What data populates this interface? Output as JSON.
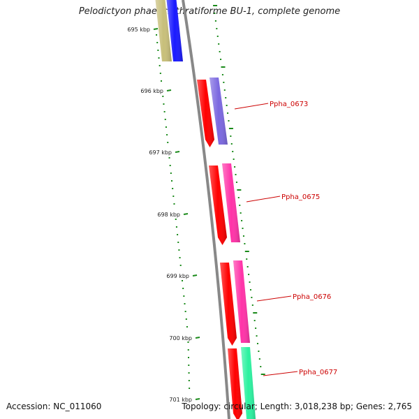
{
  "title": "Pelodictyon phaeoclathratiforme BU-1, complete genome",
  "accession": "Accession: NC_011060",
  "summary": "Topology: circular; Length: 3,018,238 bp; Genes: 2,765",
  "colors": {
    "backbone": "#888888",
    "tick": "#1a8a1a",
    "label_line": "#cc0000",
    "gene_red": "#ff0000",
    "gene_blue": "#1a1aff",
    "gene_khaki": "#c8bf7a",
    "gene_purple": "#7b68e0",
    "gene_magenta": "#ff33a8",
    "gene_mint": "#2cf2a0"
  },
  "ticks": [
    {
      "label": "695 kbp"
    },
    {
      "label": "696 kbp"
    },
    {
      "label": "697 kbp"
    },
    {
      "label": "698 kbp"
    },
    {
      "label": "699 kbp"
    },
    {
      "label": "700 kbp"
    },
    {
      "label": "701 kbp"
    }
  ],
  "gene_labels": [
    {
      "name": "Ppha_0673"
    },
    {
      "name": "Ppha_0675"
    },
    {
      "name": "Ppha_0676"
    },
    {
      "name": "Ppha_0677"
    }
  ],
  "genes": [
    {
      "strand": "plus",
      "color": "gene_khaki"
    },
    {
      "strand": "plus",
      "color": "gene_blue"
    },
    {
      "strand": "minus",
      "color": "gene_red"
    },
    {
      "strand": "plus",
      "color": "gene_purple"
    },
    {
      "strand": "minus",
      "color": "gene_red"
    },
    {
      "strand": "plus",
      "color": "gene_magenta"
    },
    {
      "strand": "minus",
      "color": "gene_red"
    },
    {
      "strand": "plus",
      "color": "gene_magenta"
    },
    {
      "strand": "minus",
      "color": "gene_red"
    },
    {
      "strand": "plus",
      "color": "gene_mint"
    }
  ]
}
